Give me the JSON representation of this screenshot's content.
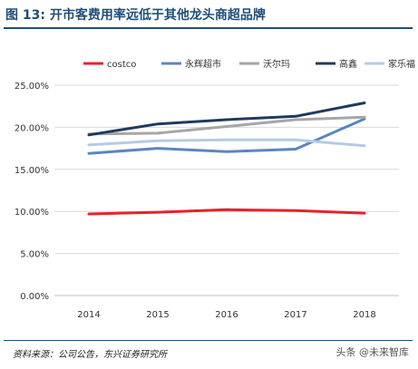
{
  "header": {
    "title": "图 13: 开市客费用率远低于其他龙头商超品牌"
  },
  "footer": {
    "source": "资料来源：公司公告，东兴证券研究所",
    "watermark": "头条 @未来智库"
  },
  "chart_data": {
    "type": "line",
    "title": "",
    "xlabel": "",
    "ylabel": "",
    "categories": [
      "2014",
      "2015",
      "2016",
      "2017",
      "2018"
    ],
    "ylim": [
      0,
      25
    ],
    "yticks": [
      "0.00%",
      "5.00%",
      "10.00%",
      "15.00%",
      "20.00%",
      "25.00%"
    ],
    "grid": true,
    "legend_position": "top",
    "series": [
      {
        "name": "costco",
        "color": "#e8212b",
        "values": [
          9.7,
          9.9,
          10.2,
          10.1,
          9.8
        ]
      },
      {
        "name": "永辉超市",
        "color": "#5a86c0",
        "values": [
          16.9,
          17.5,
          17.1,
          17.4,
          21.0
        ]
      },
      {
        "name": "沃尔玛",
        "color": "#a6a6a6",
        "values": [
          19.2,
          19.3,
          20.1,
          20.9,
          21.2
        ]
      },
      {
        "name": "高鑫",
        "color": "#1f3a5f",
        "values": [
          19.1,
          20.4,
          20.9,
          21.3,
          22.9
        ]
      },
      {
        "name": "家乐福",
        "color": "#b4cbe6",
        "values": [
          17.9,
          18.4,
          18.5,
          18.5,
          17.8
        ]
      }
    ]
  }
}
